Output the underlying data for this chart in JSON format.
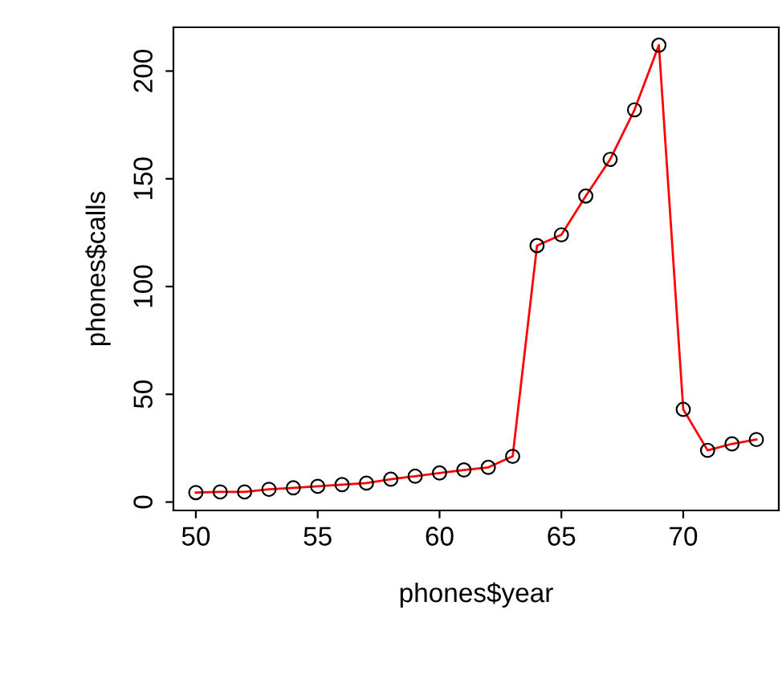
{
  "chart_data": {
    "type": "line",
    "xlabel": "phones$year",
    "ylabel": "phones$calls",
    "x": [
      50,
      51,
      52,
      53,
      54,
      55,
      56,
      57,
      58,
      59,
      60,
      61,
      62,
      63,
      64,
      65,
      66,
      67,
      68,
      69,
      70,
      71,
      72,
      73
    ],
    "series": [
      {
        "color": "#ff0000",
        "values": [
          4.4,
          4.7,
          4.7,
          5.9,
          6.6,
          7.3,
          8.1,
          8.8,
          10.6,
          12.0,
          13.5,
          14.9,
          16.1,
          21.2,
          119.0,
          124.0,
          142.0,
          159.0,
          182.0,
          212.0,
          43.0,
          24.0,
          27.0,
          29.0
        ]
      }
    ],
    "xlim": [
      49.08,
      73.92
    ],
    "ylim": [
      -3.9,
      220.3
    ],
    "xticks": [
      50,
      55,
      60,
      65,
      70
    ],
    "yticks": [
      0,
      50,
      100,
      150,
      200
    ],
    "marker": "circle",
    "line_style": "solid",
    "grid": false,
    "legend": false
  }
}
